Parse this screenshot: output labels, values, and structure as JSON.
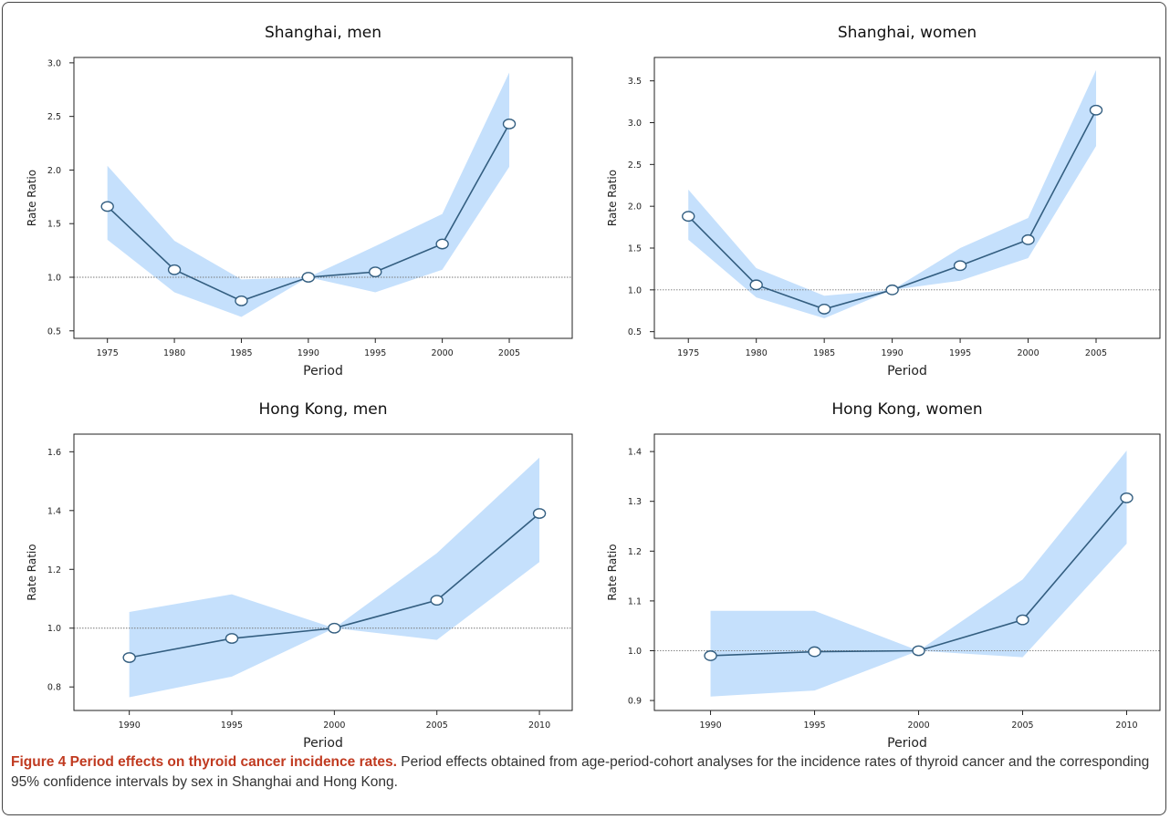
{
  "caption": {
    "heading": "Figure 4 Period effects on thyroid cancer incidence rates.",
    "text": "Period effects obtained from age-period-cohort analyses for the incidence rates of thyroid cancer and the corresponding 95% confidence intervals by sex in Shanghai and Hong Kong."
  },
  "colors": {
    "band": "#c5e0fc",
    "line": "#335e80",
    "marker_fill": "#ffffff",
    "reference_line": "#777777"
  },
  "chart_data": [
    {
      "type": "line",
      "title": "Shanghai, men",
      "xlabel": "Period",
      "ylabel": "Rate Ratio",
      "x": [
        1975,
        1980,
        1985,
        1990,
        1995,
        2000,
        2005
      ],
      "xticks": [
        "1975",
        "1980",
        "1985",
        "1990",
        "1995",
        "2000",
        "2005"
      ],
      "yticks": [
        "0.5",
        "1.0",
        "1.5",
        "2.0",
        "2.5",
        "3.0"
      ],
      "xlim": [
        1972.5,
        2009.7
      ],
      "ylim": [
        0.43,
        3.05
      ],
      "reference_y": 1.0,
      "series": [
        {
          "values": [
            1.66,
            1.07,
            0.78,
            1.0,
            1.05,
            1.31,
            2.43
          ],
          "ci_lower": [
            1.35,
            0.86,
            0.63,
            1.0,
            0.86,
            1.07,
            2.03
          ],
          "ci_upper": [
            2.04,
            1.34,
            0.98,
            1.0,
            1.29,
            1.59,
            2.91
          ]
        }
      ],
      "grid": false
    },
    {
      "type": "line",
      "title": "Shanghai, women",
      "xlabel": "Period",
      "ylabel": "Rate Ratio",
      "x": [
        1975,
        1980,
        1985,
        1990,
        1995,
        2000,
        2005
      ],
      "xticks": [
        "1975",
        "1980",
        "1985",
        "1990",
        "1995",
        "2000",
        "2005"
      ],
      "yticks": [
        "0.5",
        "1.0",
        "1.5",
        "2.0",
        "2.5",
        "3.0",
        "3.5"
      ],
      "xlim": [
        1972.5,
        2009.7
      ],
      "ylim": [
        0.42,
        3.78
      ],
      "reference_y": 1.0,
      "series": [
        {
          "values": [
            1.88,
            1.06,
            0.77,
            1.0,
            1.29,
            1.6,
            3.15
          ],
          "ci_lower": [
            1.6,
            0.91,
            0.66,
            1.0,
            1.11,
            1.38,
            2.72
          ],
          "ci_upper": [
            2.2,
            1.26,
            0.93,
            1.0,
            1.5,
            1.86,
            3.63
          ]
        }
      ],
      "grid": false
    },
    {
      "type": "line",
      "title": "Hong Kong, men",
      "xlabel": "Period",
      "ylabel": "Rate Ratio",
      "x": [
        1990,
        1995,
        2000,
        2005,
        2010
      ],
      "xticks": [
        "1990",
        "1995",
        "2000",
        "2005",
        "2010"
      ],
      "yticks": [
        "0.8",
        "1.0",
        "1.2",
        "1.4",
        "1.6"
      ],
      "xlim": [
        1987.3,
        2011.6
      ],
      "ylim": [
        0.72,
        1.66
      ],
      "reference_y": 1.0,
      "series": [
        {
          "values": [
            0.9,
            0.965,
            1.0,
            1.095,
            1.39
          ],
          "ci_lower": [
            0.765,
            0.835,
            1.0,
            0.96,
            1.225
          ],
          "ci_upper": [
            1.055,
            1.115,
            1.0,
            1.255,
            1.58
          ]
        }
      ],
      "grid": false
    },
    {
      "type": "line",
      "title": "Hong Kong, women",
      "xlabel": "Period",
      "ylabel": "Rate Ratio",
      "x": [
        1990,
        1995,
        2000,
        2005,
        2010
      ],
      "xticks": [
        "1990",
        "1995",
        "2000",
        "2005",
        "2010"
      ],
      "yticks": [
        "0.9",
        "1.0",
        "1.1",
        "1.2",
        "1.3",
        "1.4"
      ],
      "xlim": [
        1987.3,
        2011.6
      ],
      "ylim": [
        0.88,
        1.435
      ],
      "reference_y": 1.0,
      "series": [
        {
          "values": [
            0.99,
            0.998,
            1.0,
            1.062,
            1.307
          ],
          "ci_lower": [
            0.908,
            0.92,
            1.0,
            0.987,
            1.215
          ],
          "ci_upper": [
            1.08,
            1.08,
            1.0,
            1.143,
            1.402
          ]
        }
      ],
      "grid": false
    }
  ]
}
